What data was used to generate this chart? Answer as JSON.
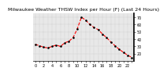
{
  "title": "Milwaukee Weather THSW Index per Hour (F) (Last 24 Hours)",
  "x": [
    0,
    1,
    2,
    3,
    4,
    5,
    6,
    7,
    8,
    9,
    10,
    11,
    12,
    13,
    14,
    15,
    16,
    17,
    18,
    19,
    20,
    21,
    22,
    23
  ],
  "y": [
    33,
    31,
    29,
    28,
    30,
    32,
    30,
    35,
    37,
    42,
    54,
    70,
    66,
    60,
    56,
    53,
    47,
    42,
    36,
    31,
    26,
    22,
    18,
    15
  ],
  "ylim": [
    10,
    75
  ],
  "xlim": [
    -0.5,
    23.5
  ],
  "ytick_vals": [
    20,
    30,
    40,
    50,
    60,
    70
  ],
  "ytick_labels": [
    "20",
    "30",
    "40",
    "50",
    "60",
    "70"
  ],
  "line_color": "#ff0000",
  "marker_color": "#000000",
  "bg_color": "#ffffff",
  "plot_bg": "#e8e8e8",
  "title_fontsize": 4.5,
  "tick_fontsize": 3.5,
  "line_width": 0.8,
  "marker_size": 1.8,
  "grid_color": "#aaaaaa",
  "vgrid_every": 2
}
